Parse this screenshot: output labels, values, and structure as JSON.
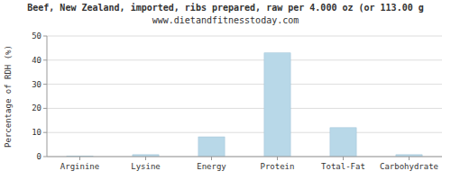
{
  "chart_data": {
    "type": "bar",
    "title": "Beef, New Zealand, imported, ribs prepared, raw per 4.000 oz (or 113.00 g",
    "subtitle": "www.dietandfitnesstoday.com",
    "categories": [
      "Arginine",
      "Lysine",
      "Energy",
      "Protein",
      "Total-Fat",
      "Carbohydrate"
    ],
    "values": [
      0.3,
      0.8,
      8.2,
      43.0,
      12.0,
      0.8
    ],
    "color": "#b8d8e8",
    "ylabel": "Percentage of RDH (%)",
    "ylim": [
      0,
      50
    ],
    "yticks": [
      0,
      10,
      20,
      30,
      40,
      50
    ],
    "grid": true
  }
}
